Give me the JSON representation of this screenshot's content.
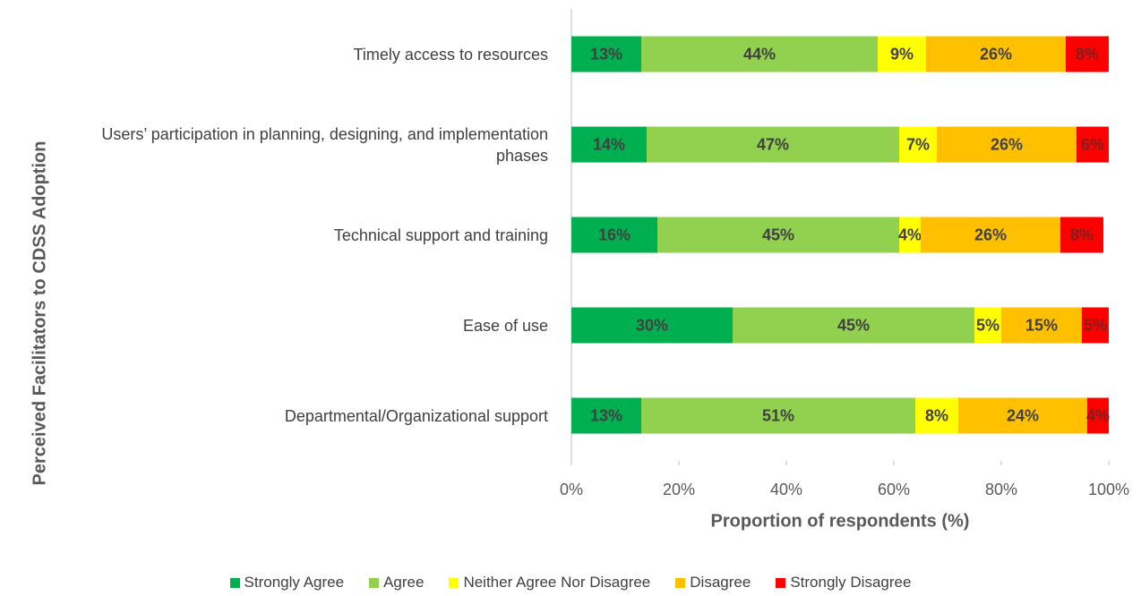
{
  "chart_data": {
    "type": "stacked-barh",
    "xlabel": "Proportion of respondents (%)",
    "ylabel": "Perceived Facilitators to CDSS Adoption",
    "categories": [
      "Timely access to resources",
      "Users’ participation in planning, designing, and implementation phases",
      "Technical support and training",
      "Ease of use",
      "Departmental/Organizational support"
    ],
    "series": [
      {
        "name": "Strongly Agree",
        "color": "#00b050",
        "values": [
          13,
          14,
          16,
          30,
          13
        ],
        "value_labels": [
          "13%",
          "14%",
          "16%",
          "30%",
          "13%"
        ]
      },
      {
        "name": "Agree",
        "color": "#92d050",
        "values": [
          44,
          47,
          45,
          45,
          51
        ],
        "value_labels": [
          "44%",
          "47%",
          "45%",
          "45%",
          "51%"
        ]
      },
      {
        "name": "Neither Agree Nor Disagree",
        "color": "#ffff00",
        "values": [
          9,
          7,
          4,
          5,
          8
        ],
        "value_labels": [
          "9%",
          "7%",
          "4%",
          "5%",
          "8%"
        ]
      },
      {
        "name": "Disagree",
        "color": "#ffc000",
        "values": [
          26,
          26,
          26,
          15,
          24
        ],
        "value_labels": [
          "26%",
          "26%",
          "26%",
          "15%",
          "24%"
        ]
      },
      {
        "name": "Strongly Disagree",
        "color": "#ff0000",
        "values": [
          8,
          6,
          8,
          5,
          4
        ],
        "value_labels": [
          "8%",
          "6%",
          "8%",
          "5%",
          "4%"
        ]
      }
    ],
    "xlim": [
      0,
      100
    ],
    "xticks": [
      {
        "value": 0,
        "label": "0%"
      },
      {
        "value": 20,
        "label": "20%"
      },
      {
        "value": 40,
        "label": "40%"
      },
      {
        "value": 60,
        "label": "60%"
      },
      {
        "value": 80,
        "label": "80%"
      },
      {
        "value": 100,
        "label": "100%"
      }
    ],
    "legend": "bottom"
  }
}
